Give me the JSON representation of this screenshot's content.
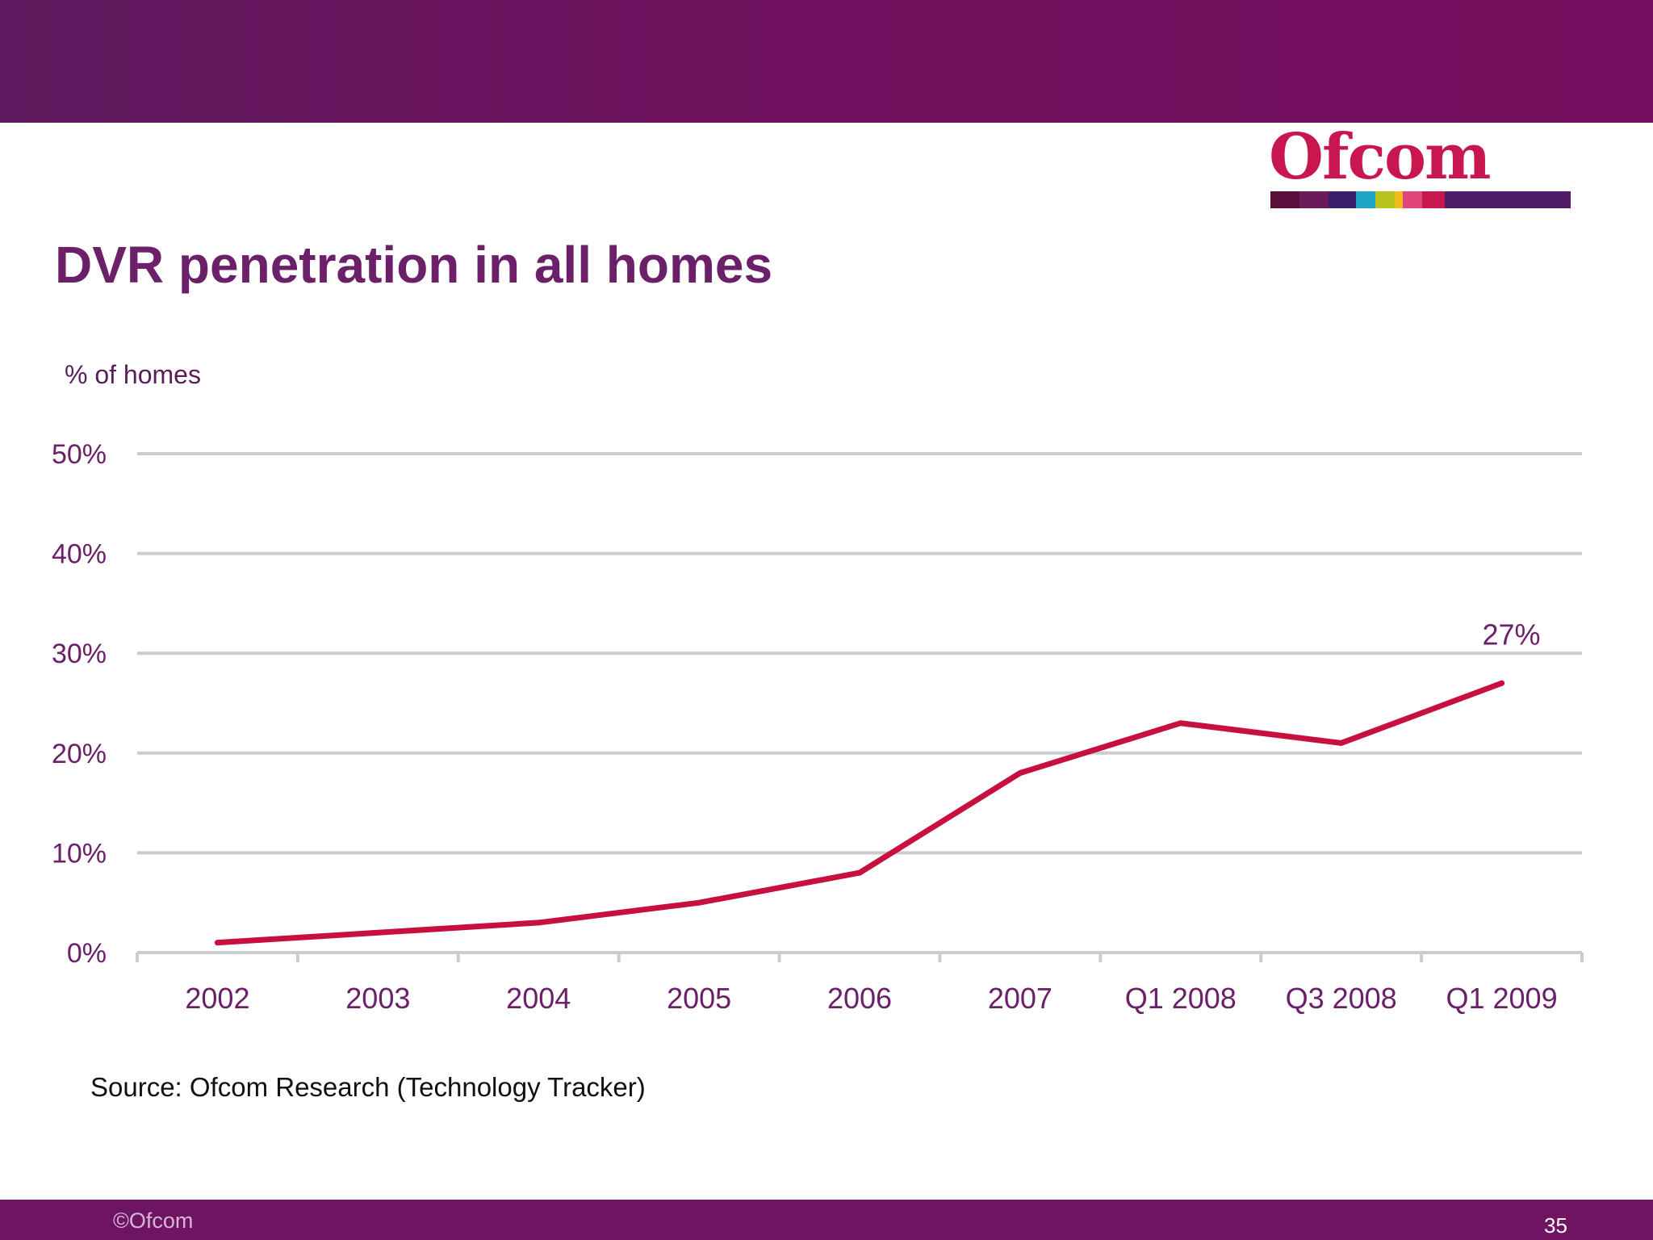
{
  "slide": {
    "title": "DVR penetration in all homes",
    "unit_label": "% of homes",
    "source": "Source: Ofcom Research (Technology Tracker)",
    "copyright": "©Ofcom",
    "page_number": "35"
  },
  "logo": {
    "text": "Ofcom",
    "bar_colors": [
      "#5a0e3c",
      "#6b1a5a",
      "#3a1f6b",
      "#1ea4c4",
      "#b8c41e",
      "#f3b81a",
      "#e0457a",
      "#c8174f",
      "#4d1c64",
      "#4d1c64"
    ]
  },
  "colors": {
    "line": "#c8103e",
    "grid": "#cccccc",
    "tick_text": "#6b2069",
    "annotation": "#6b2069"
  },
  "chart_data": {
    "type": "line",
    "title": "DVR penetration in all homes",
    "ylabel": "% of homes",
    "xlabel": "",
    "categories": [
      "2002",
      "2003",
      "2004",
      "2005",
      "2006",
      "2007",
      "Q1 2008",
      "Q3 2008",
      "Q1 2009"
    ],
    "series": [
      {
        "values": [
          1,
          2,
          3,
          5,
          8,
          18,
          23,
          21,
          27
        ]
      }
    ],
    "ylim": [
      0,
      50
    ],
    "yticks": [
      0,
      10,
      20,
      30,
      40,
      50
    ],
    "ytick_labels": [
      "0%",
      "10%",
      "20%",
      "30%",
      "40%",
      "50%"
    ],
    "grid": true,
    "annotations": [
      {
        "category": "Q1 2009",
        "text": "27%"
      }
    ]
  }
}
